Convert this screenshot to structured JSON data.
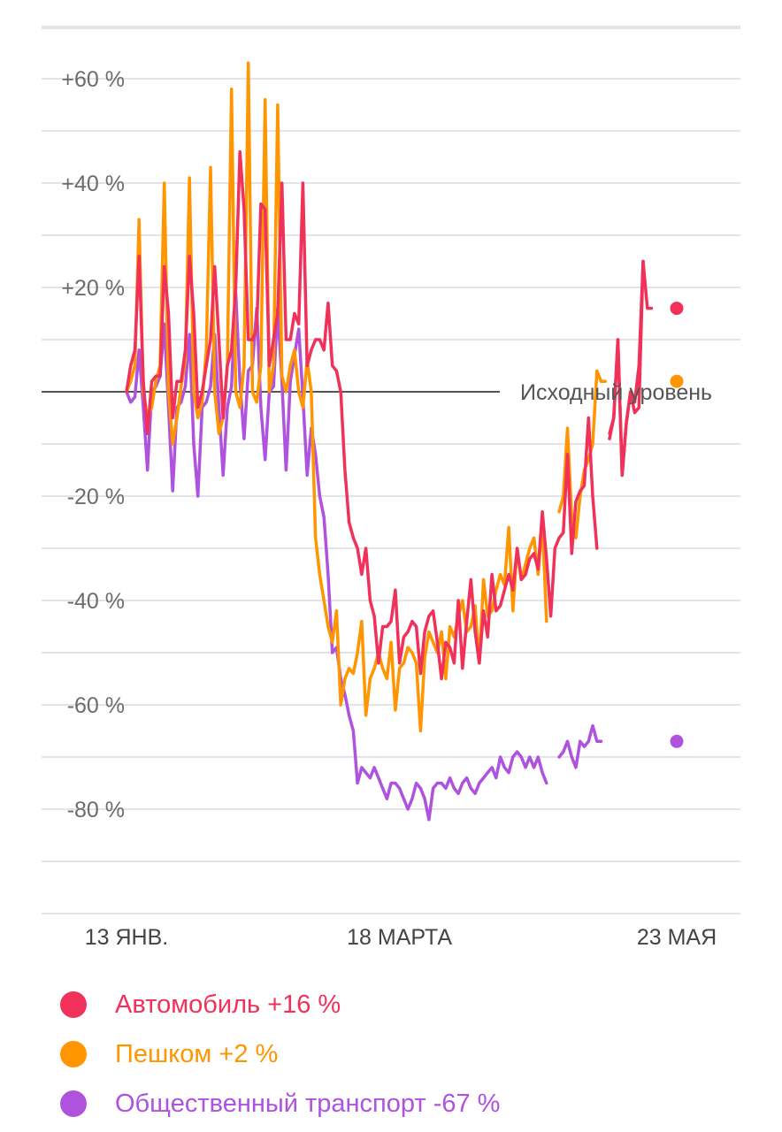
{
  "chart_data": {
    "type": "line",
    "baseline_label": "Исходный уровень",
    "y_ticks": [
      "+60 %",
      "+40 %",
      "+20 %",
      "-20 %",
      "-40 %",
      "-60 %",
      "-80 %"
    ],
    "y_tick_values": [
      60,
      40,
      20,
      -20,
      -40,
      -60,
      -80
    ],
    "ylim": [
      -100,
      75
    ],
    "grid": true,
    "x_ticks": [
      "13 ЯНВ.",
      "18 МАРТА",
      "23 МАЯ"
    ],
    "x_tick_days": [
      0,
      65,
      131
    ],
    "xlim": [
      0,
      131
    ],
    "legend_position": "bottom",
    "series": [
      {
        "name": "Автомобиль",
        "color": "#f0315a",
        "end_label": "+16 %",
        "end_value": 16,
        "values": [
          0,
          5,
          8,
          26,
          2,
          -8,
          2,
          3,
          3,
          24,
          15,
          -5,
          2,
          2,
          8,
          26,
          15,
          -3,
          0,
          5,
          10,
          24,
          10,
          -5,
          5,
          8,
          20,
          46,
          35,
          10,
          10,
          12,
          36,
          35,
          5,
          10,
          15,
          40,
          10,
          10,
          15,
          13,
          40,
          5,
          8,
          10,
          10,
          8,
          17,
          5,
          4,
          0,
          -15,
          -25,
          -28,
          -30,
          -35,
          -30,
          -40,
          -43,
          -52,
          -45,
          -45,
          -44,
          -38,
          -52,
          -47,
          -46,
          -44,
          -45,
          -54,
          -46,
          -43,
          -42,
          -48,
          -55,
          -48,
          -49,
          -52,
          -40,
          -53,
          -44,
          -36,
          -46,
          -52,
          -42,
          -47,
          -35,
          -42,
          -41,
          -38,
          -35,
          -38,
          -30,
          -36,
          -35,
          -32,
          -31,
          -34,
          -23,
          -32,
          -43,
          -30,
          -28,
          -27,
          -12,
          -31,
          -21,
          -19,
          -18,
          -5,
          -20,
          -30,
          null,
          null,
          -8,
          -5,
          10,
          -16,
          -6,
          0,
          -4,
          -3,
          25,
          null,
          null,
          null,
          null,
          null,
          null,
          null,
          null
        ],
        "values_tail": [
          null,
          null,
          null,
          null,
          null,
          null,
          null,
          null,
          null,
          null,
          null,
          null,
          null,
          null,
          null,
          null,
          null,
          null,
          null,
          null,
          null,
          null,
          null,
          null,
          null,
          null,
          null,
          null,
          null,
          null,
          null,
          null,
          null,
          null,
          null,
          null,
          null,
          null,
          null,
          null,
          null,
          null,
          null,
          null,
          null,
          null,
          null,
          null,
          null,
          null,
          null,
          null,
          null,
          null,
          null,
          null,
          null,
          null,
          null,
          null,
          null,
          null,
          null,
          null,
          null,
          null,
          null,
          null,
          null,
          null,
          null,
          null,
          null,
          null,
          null,
          null,
          null,
          null,
          null,
          null,
          null,
          null,
          null,
          null,
          null,
          null,
          null,
          null,
          null,
          null,
          null,
          null,
          null,
          null,
          null,
          null,
          null,
          null,
          null,
          null,
          null,
          null,
          null,
          null,
          null,
          null,
          null,
          null,
          null,
          null,
          null,
          null,
          null,
          null,
          null,
          -9,
          -5,
          10,
          -16,
          -6,
          0,
          -2,
          5,
          25,
          16,
          16,
          null,
          null,
          null,
          null,
          null,
          null
        ]
      },
      {
        "name": "Пешком",
        "color": "#ff9500",
        "end_label": "+2 %",
        "end_value": 2,
        "values": [
          0,
          2,
          5,
          33,
          0,
          -5,
          -3,
          2,
          5,
          40,
          0,
          -10,
          -5,
          1,
          6,
          41,
          0,
          -5,
          -2,
          8,
          43,
          0,
          -8,
          -5,
          5,
          58,
          0,
          -3,
          5,
          63,
          0,
          -2,
          5,
          56,
          0,
          5,
          55,
          3,
          0,
          5,
          8,
          0,
          -3,
          6,
          0,
          -28,
          -35,
          -40,
          -45,
          -48,
          -42,
          -60,
          -55,
          -53,
          -54,
          -50,
          -44,
          -62,
          -55,
          -53,
          -50,
          -53,
          -55,
          -48,
          -61,
          -53,
          -52,
          -49,
          -50,
          -52,
          -65,
          -51,
          -46,
          -48,
          -50,
          -46,
          -55,
          -45,
          -47,
          -43,
          -40,
          -46,
          -45,
          -41,
          -52,
          -36,
          -43,
          -42,
          -38,
          -35,
          -37,
          -26,
          -42,
          -30,
          -36,
          -33,
          -30,
          -28,
          -35,
          -25,
          -44,
          null,
          null,
          -23,
          -20,
          -7,
          -24,
          -28,
          -20,
          -15,
          -13,
          -10,
          4,
          2,
          2,
          null,
          null,
          null,
          null,
          null,
          null,
          null,
          null,
          null,
          null,
          null,
          null,
          null,
          null,
          null,
          null,
          null
        ]
      },
      {
        "name": "Общественный транспорт",
        "color": "#af52de",
        "end_label": "-67 %",
        "end_value": -67,
        "values": [
          0,
          -2,
          -1,
          8,
          -3,
          -15,
          0,
          1,
          3,
          13,
          -3,
          -19,
          -3,
          -2,
          1,
          11,
          -10,
          -20,
          -3,
          -2,
          1,
          11,
          -3,
          -16,
          -3,
          1,
          19,
          2,
          -9,
          4,
          5,
          16,
          -3,
          -13,
          0,
          1,
          16,
          2,
          -15,
          2,
          7,
          12,
          -1,
          -16,
          -7,
          -12,
          -20,
          -24,
          -35,
          -50,
          -49,
          -55,
          -58,
          -62,
          -65,
          -75,
          -72,
          -73,
          -74,
          -72,
          -74,
          -76,
          -78,
          -75,
          -75,
          -76,
          -78,
          -80,
          -78,
          -75,
          -76,
          -78,
          -82,
          -76,
          -75,
          -75,
          -76,
          -74,
          -76,
          -77,
          -75,
          -74,
          -76,
          -77,
          -75,
          -74,
          -73,
          -72,
          -74,
          -70,
          -72,
          -73,
          -70,
          -69,
          -70,
          -72,
          -70,
          -72,
          -70,
          -73,
          -75,
          null,
          null,
          -70,
          -69,
          -67,
          -70,
          -72,
          -67,
          -68,
          -67,
          -64,
          -67,
          -67,
          null,
          null,
          null,
          null,
          null,
          null,
          null,
          null,
          null,
          null,
          null,
          null,
          null,
          null,
          null,
          null,
          null,
          null
        ]
      }
    ]
  }
}
